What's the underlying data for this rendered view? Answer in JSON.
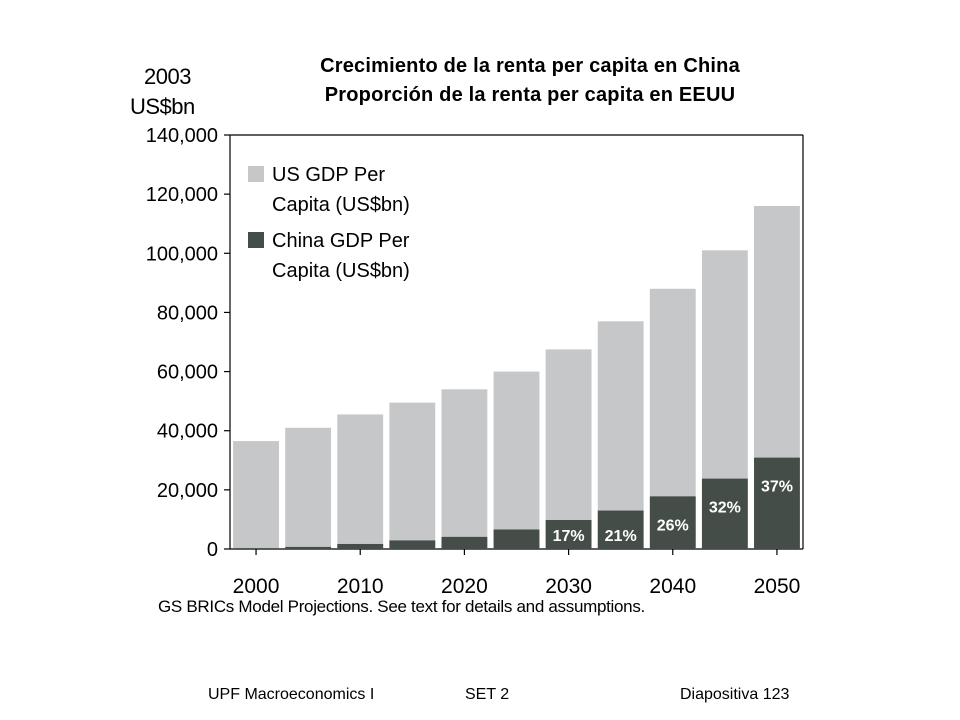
{
  "slide": {
    "footer_left": "UPF Macroeconomics I",
    "footer_center": "SET 2",
    "footer_right": "Diapositiva 123"
  },
  "chart_data": {
    "type": "bar",
    "title": "Crecimiento de la renta per capita en China",
    "subtitle": "Proporción de la renta per capita en EEUU",
    "unit_line1": "2003",
    "unit_line2": "US$bn",
    "source": "GS BRICs Model Projections. See text for details and assumptions.",
    "ylim": [
      0,
      140000
    ],
    "y_ticks": [
      0,
      20000,
      40000,
      60000,
      80000,
      100000,
      120000,
      140000
    ],
    "y_tick_labels": [
      "0",
      "20,000",
      "40,000",
      "60,000",
      "80,000",
      "100,000",
      "120,000",
      "140,000"
    ],
    "x_tick_labels": [
      "2000",
      "2010",
      "2020",
      "2030",
      "2040",
      "2050"
    ],
    "categories": [
      "2000",
      "2005",
      "2010",
      "2015",
      "2020",
      "2025",
      "2030",
      "2035",
      "2040",
      "2045",
      "2050"
    ],
    "grid": false,
    "legend_position": "top-left",
    "colors": {
      "us": "#c6c7c9",
      "china": "#444d48"
    },
    "series": [
      {
        "name": "US GDP Per Capita (US$bn)",
        "legend_lines": [
          "US GDP Per",
          "Capita (US$bn)"
        ],
        "values": [
          36500,
          41000,
          45500,
          49500,
          54000,
          60000,
          67500,
          77000,
          88000,
          101000,
          116000
        ]
      },
      {
        "name": "China GDP Per Capita (US$bn)",
        "legend_lines": [
          "China GDP Per",
          "Capita (US$bn)"
        ],
        "values": [
          300,
          700,
          1700,
          2900,
          4100,
          6600,
          9800,
          13000,
          17800,
          23800,
          30900
        ]
      }
    ],
    "share_labels": [
      "",
      "",
      "",
      "",
      "",
      "",
      "17%",
      "21%",
      "26%",
      "32%",
      "37%"
    ]
  }
}
